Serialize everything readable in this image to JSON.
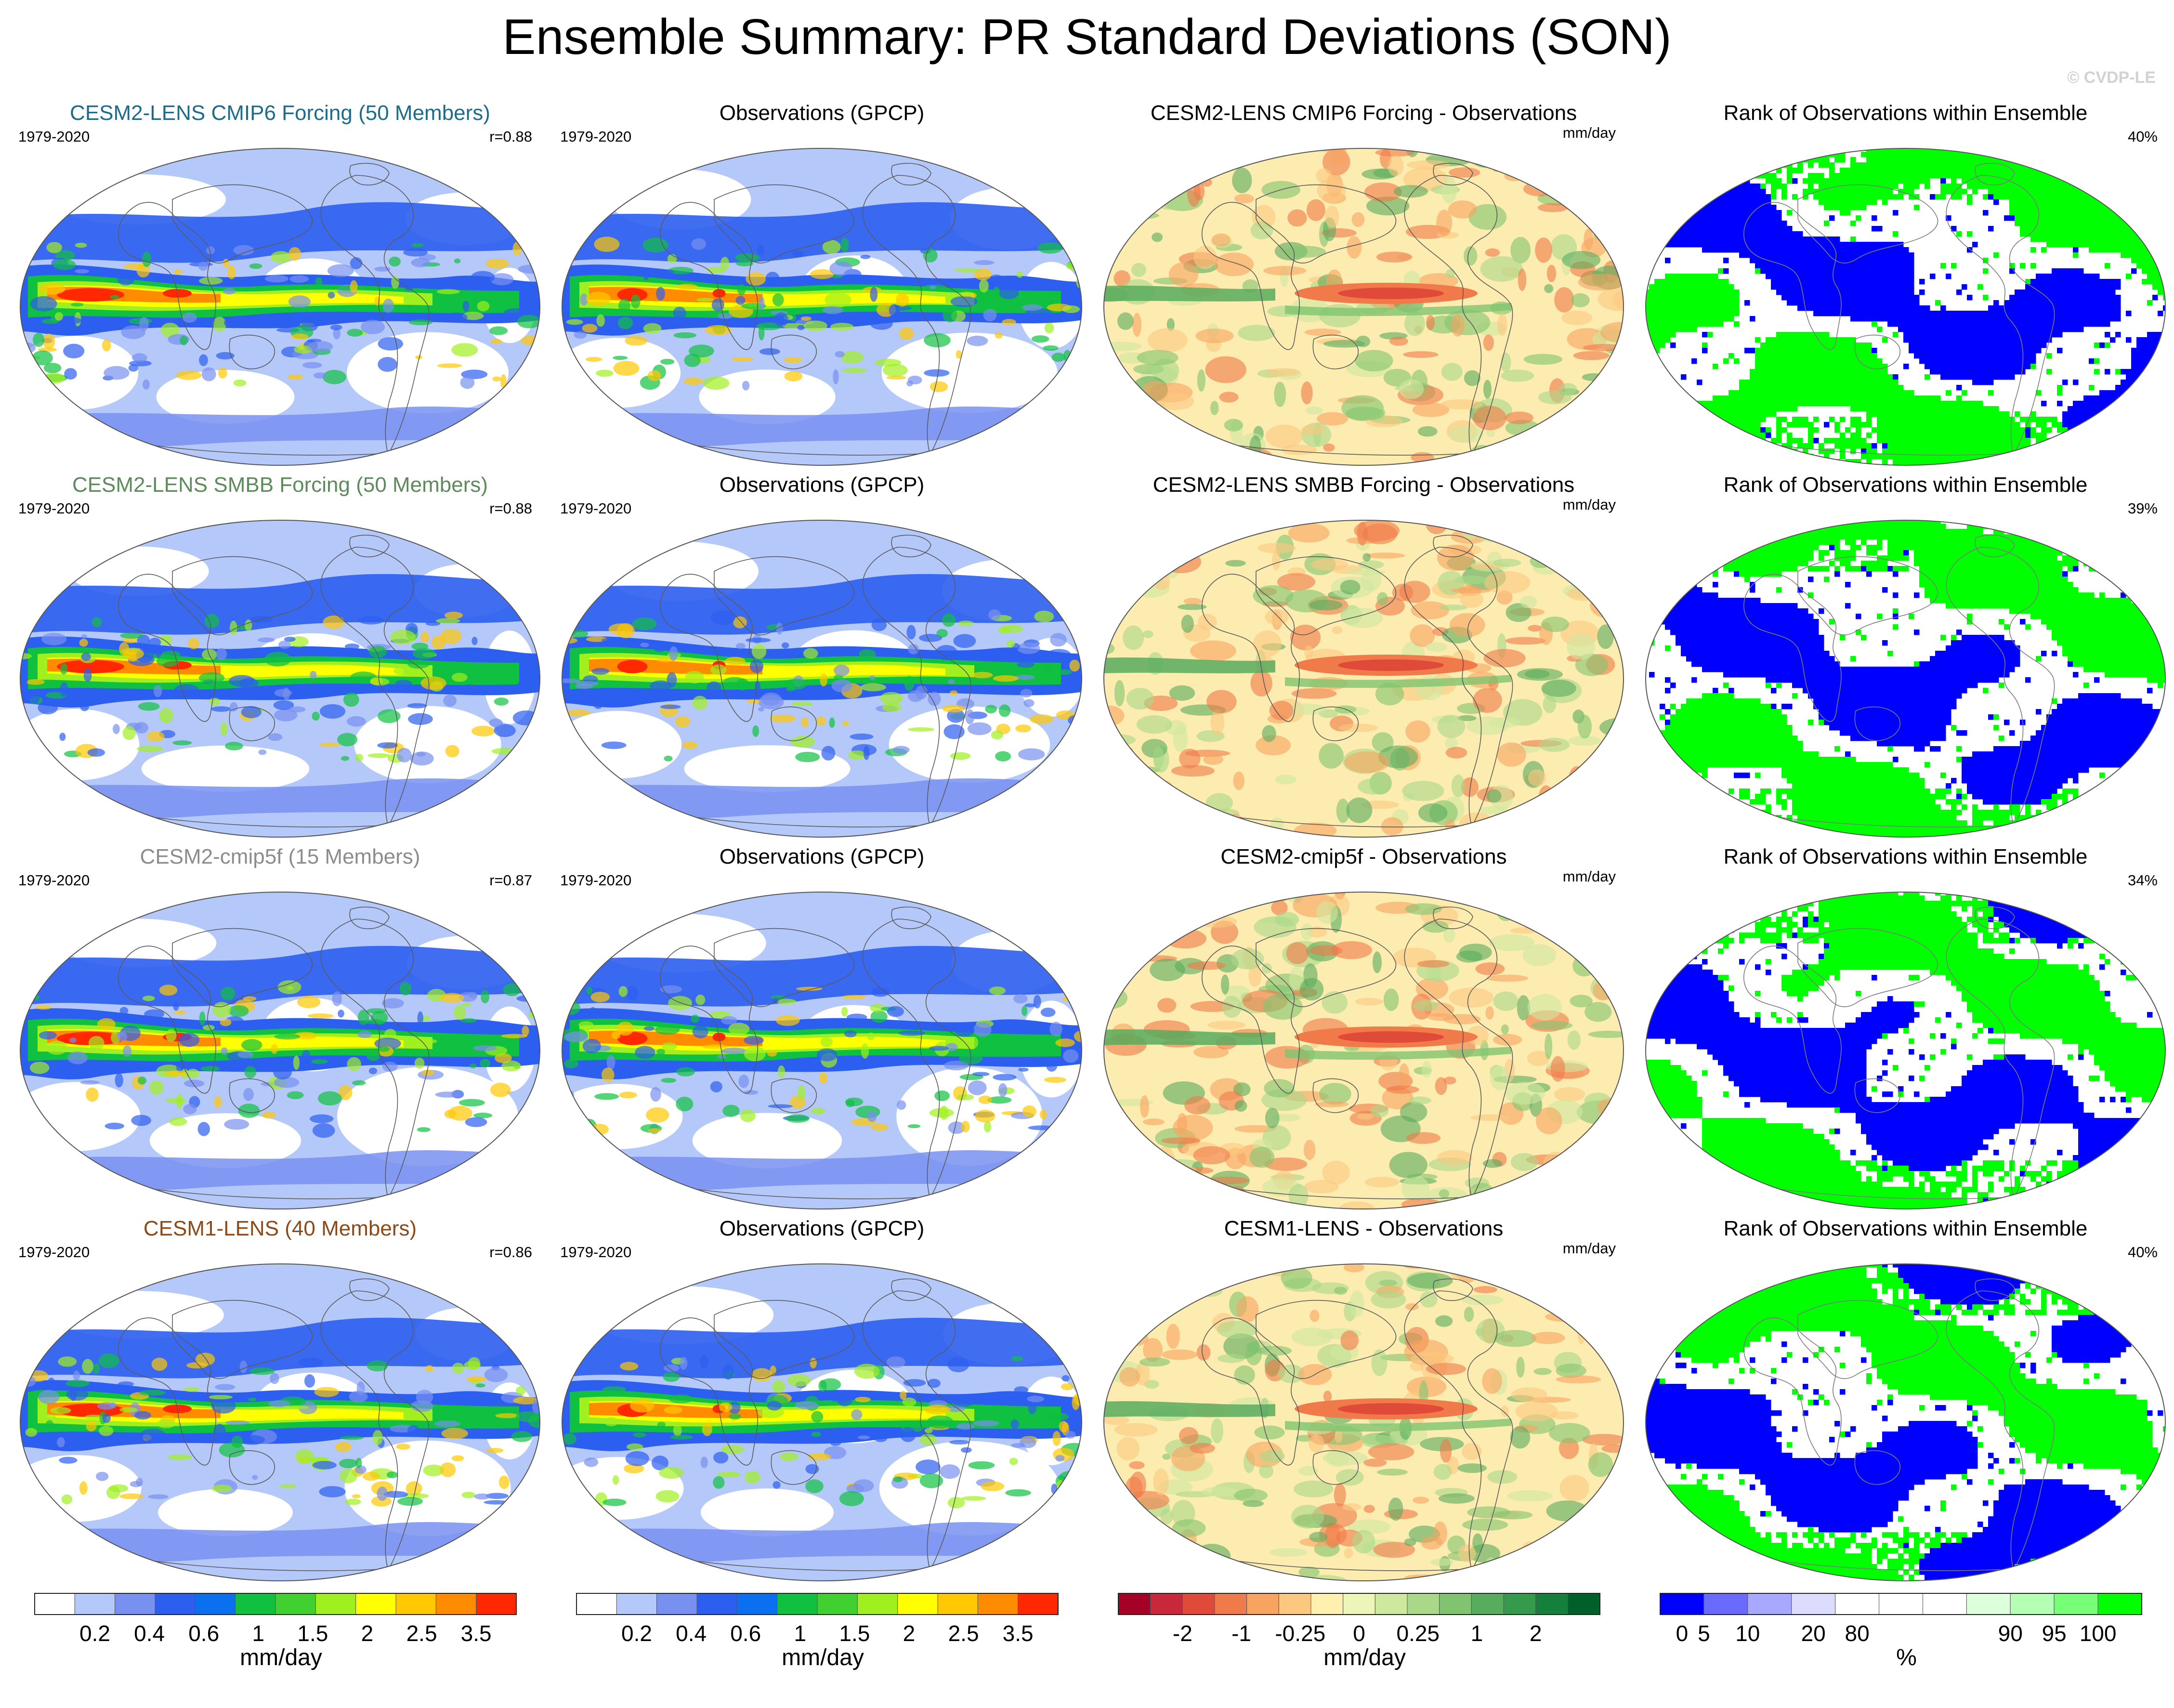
{
  "title": "Ensemble Summary: PR Standard Deviations (SON)",
  "watermark": "© CVDP-LE",
  "ensembles": [
    {
      "label": "CESM2-LENS CMIP6 Forcing (50 Members)",
      "color": "#1f6b8a",
      "period": "1979-2020",
      "r": "r=0.88",
      "obs_title": "Observations (GPCP)",
      "diff_title": "CESM2-LENS CMIP6 Forcing - Observations",
      "diff_units": "mm/day",
      "rank_title": "Rank of Observations within Ensemble",
      "rank_pct": "40%"
    },
    {
      "label": "CESM2-LENS SMBB Forcing (50 Members)",
      "color": "#5e8a5e",
      "period": "1979-2020",
      "r": "r=0.88",
      "obs_title": "Observations (GPCP)",
      "diff_title": "CESM2-LENS SMBB Forcing - Observations",
      "diff_units": "mm/day",
      "rank_title": "Rank of Observations within Ensemble",
      "rank_pct": "39%"
    },
    {
      "label": "CESM2-cmip5f (15 Members)",
      "color": "#8c8c8c",
      "period": "1979-2020",
      "r": "r=0.87",
      "obs_title": "Observations (GPCP)",
      "diff_title": "CESM2-cmip5f - Observations",
      "diff_units": "mm/day",
      "rank_title": "Rank of Observations within Ensemble",
      "rank_pct": "34%"
    },
    {
      "label": "CESM1-LENS (40 Members)",
      "color": "#8a4a1a",
      "period": "1979-2020",
      "r": "r=0.86",
      "obs_title": "Observations (GPCP)",
      "diff_title": "CESM1-LENS - Observations",
      "diff_units": "mm/day",
      "rank_title": "Rank of Observations within Ensemble",
      "rank_pct": "40%"
    }
  ],
  "obs_period": "1979-2020",
  "colorbars": [
    {
      "units": "mm/day",
      "colors": [
        "#ffffff",
        "#b4c8fa",
        "#7890f0",
        "#2c5ef0",
        "#0a70f0",
        "#10c040",
        "#40d030",
        "#a0f020",
        "#ffff00",
        "#ffc800",
        "#ff8c00",
        "#ff2800"
      ],
      "ticks": [
        "0.2",
        "0.4",
        "0.6",
        "1",
        "1.5",
        "2",
        "2.5",
        "3.5"
      ]
    },
    {
      "units": "mm/day",
      "colors": [
        "#ffffff",
        "#b4c8fa",
        "#7890f0",
        "#2c5ef0",
        "#0a70f0",
        "#10c040",
        "#40d030",
        "#a0f020",
        "#ffff00",
        "#ffc800",
        "#ff8c00",
        "#ff2800"
      ],
      "ticks": [
        "0.2",
        "0.4",
        "0.6",
        "1",
        "1.5",
        "2",
        "2.5",
        "3.5"
      ]
    },
    {
      "units": "mm/day",
      "colors": [
        "#a50026",
        "#c8283a",
        "#e04a38",
        "#f07a4a",
        "#f8a460",
        "#fcc880",
        "#fff0b0",
        "#eef5b8",
        "#cfe8a0",
        "#a8d888",
        "#80c470",
        "#58ac5e",
        "#349a4c",
        "#14803c",
        "#00602a"
      ],
      "ticks": [
        "-2",
        "-1",
        "-0.25",
        "0",
        "0.25",
        "1",
        "2"
      ]
    },
    {
      "units": "%",
      "colors": [
        "#0000ff",
        "#6a6aff",
        "#a8a8ff",
        "#dcdcff",
        "#ffffff",
        "#ffffff",
        "#ffffff",
        "#dcffdc",
        "#b4ffb4",
        "#78ff78",
        "#00ff00"
      ],
      "ticks": [
        "0",
        "5",
        "10",
        "20",
        "80",
        "90",
        "95",
        "100"
      ]
    }
  ]
}
